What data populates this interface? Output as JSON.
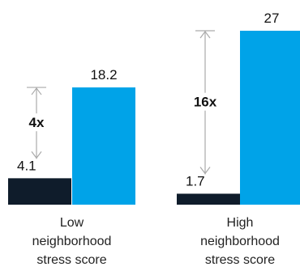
{
  "chart_data": {
    "type": "bar",
    "categories": [
      [
        "Low",
        "neighborhood",
        "stress score"
      ],
      [
        "High",
        "neighborhood",
        "stress score"
      ]
    ],
    "series": [
      {
        "values": [
          4.1,
          1.7
        ],
        "color": "#0f1c2b"
      },
      {
        "values": [
          18.2,
          27
        ],
        "color": "#00a3e8"
      }
    ],
    "value_labels": [
      [
        "4.1",
        "18.2"
      ],
      [
        "1.7",
        "27"
      ]
    ],
    "multipliers": [
      "4x",
      "16x"
    ],
    "ylim": [
      0,
      27
    ],
    "grid": false,
    "annotation_color": "#aaaaaa"
  }
}
